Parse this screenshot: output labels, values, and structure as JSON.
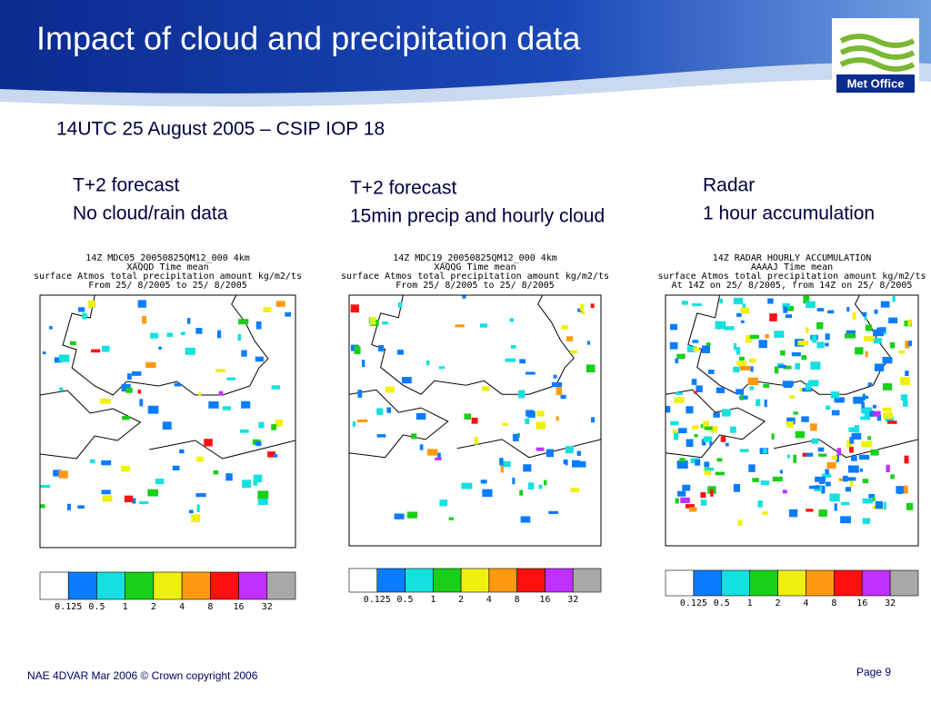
{
  "header": {
    "title": "Impact of cloud and precipitation data",
    "logo": "Met Office"
  },
  "subtitle": "14UTC 25 August 2005 – CSIP IOP 18",
  "panels": [
    {
      "caption": [
        "T+2 forecast",
        "No cloud/rain data"
      ],
      "map_header": [
        "14Z    MDC05_20050825QM12_000 4km",
        "XAQQD Time mean",
        "surface Atmos total precipitation amount kg/m2/ts",
        "From 25/ 8/2005 to 25/ 8/2005"
      ]
    },
    {
      "caption": [
        "T+2 forecast",
        "15min precip and hourly cloud"
      ],
      "map_header": [
        "14Z    MDC19_20050825QM12_000 4km",
        "XAQQG Time mean",
        "surface Atmos total precipitation amount kg/m2/ts",
        "From 25/ 8/2005 to 25/ 8/2005"
      ]
    },
    {
      "caption": [
        "Radar",
        "1 hour accumulation"
      ],
      "map_header": [
        "14Z RADAR HOURLY ACCUMULATION",
        "AAAAJ Time mean",
        "surface Atmos total precipitation amount kg/m2/ts",
        "At 14Z on 25/ 8/2005, from 14Z on 25/ 8/2005"
      ]
    }
  ],
  "colorbar": {
    "labels": [
      "0.125",
      "0.5",
      "1",
      "2",
      "4",
      "8",
      "16",
      "32"
    ],
    "colors": [
      "#ffffff",
      "#0a7cff",
      "#14e0e0",
      "#18d018",
      "#f0f010",
      "#ff9a10",
      "#ff1010",
      "#c030ff",
      "#a8a8a8"
    ]
  },
  "footer": {
    "left": "NAE 4DVAR Mar 2006 © Crown copyright 2006",
    "right": "Page 9"
  }
}
